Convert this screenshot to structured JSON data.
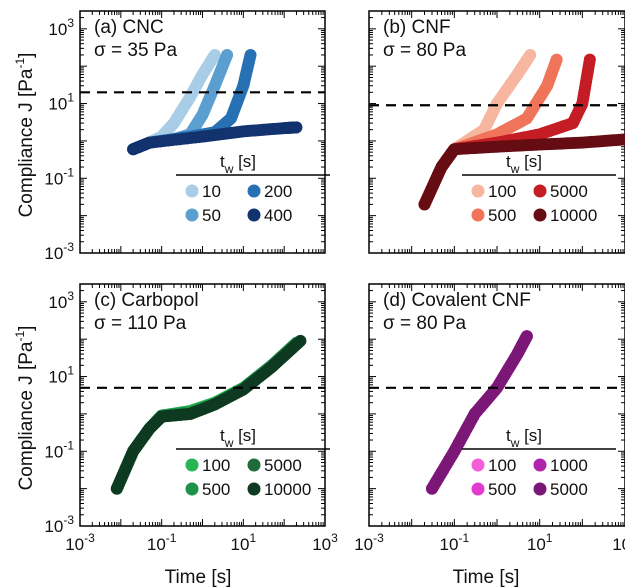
{
  "figure": {
    "ylabel": "Compliance J [Pa",
    "ylabel_sup": "-1",
    "ylabel_tail": "]",
    "xlabel": "Time [s]",
    "legend_var": "t",
    "legend_sub": "w",
    "legend_unit": " [s]"
  },
  "chart_data": [
    {
      "type": "scatter",
      "label": "(a) CNC",
      "stress": "σ = 35 Pa",
      "x_scale": "log",
      "y_scale": "log",
      "xlim": [
        0.001,
        1000
      ],
      "ylim": [
        0.001,
        3000
      ],
      "reference_line_y": 20,
      "legend": [
        "10",
        "200",
        "50",
        "400"
      ],
      "series": [
        {
          "name": "10",
          "color": "#a9cde6",
          "values": [
            [
              0.02,
              0.6
            ],
            [
              0.05,
              0.9
            ],
            [
              0.1,
              1.3
            ],
            [
              0.2,
              3
            ],
            [
              0.5,
              15
            ],
            [
              1,
              60
            ],
            [
              2,
              200
            ]
          ]
        },
        {
          "name": "50",
          "color": "#5b9fd0",
          "values": [
            [
              0.02,
              0.6
            ],
            [
              0.05,
              0.9
            ],
            [
              0.2,
              1.1
            ],
            [
              0.5,
              1.5
            ],
            [
              1,
              5
            ],
            [
              2,
              30
            ],
            [
              4,
              200
            ]
          ]
        },
        {
          "name": "200",
          "color": "#2870b4",
          "values": [
            [
              0.02,
              0.6
            ],
            [
              0.05,
              0.9
            ],
            [
              0.5,
              1.3
            ],
            [
              2,
              1.7
            ],
            [
              5,
              4
            ],
            [
              10,
              30
            ],
            [
              15,
              200
            ]
          ]
        },
        {
          "name": "400",
          "color": "#12336e",
          "values": [
            [
              0.02,
              0.6
            ],
            [
              0.05,
              0.9
            ],
            [
              1,
              1.3
            ],
            [
              10,
              1.8
            ],
            [
              100,
              2.2
            ],
            [
              200,
              2.3
            ]
          ]
        }
      ]
    },
    {
      "type": "scatter",
      "label": "(b) CNF",
      "stress": "σ = 80 Pa",
      "x_scale": "log",
      "y_scale": "log",
      "xlim": [
        0.001,
        1000
      ],
      "ylim": [
        0.001,
        3000
      ],
      "reference_line_y": 9,
      "legend": [
        "100",
        "5000",
        "500",
        "10000"
      ],
      "series": [
        {
          "name": "100",
          "color": "#f6b6a0",
          "values": [
            [
              0.02,
              0.02
            ],
            [
              0.05,
              0.2
            ],
            [
              0.1,
              0.6
            ],
            [
              0.5,
              2
            ],
            [
              1,
              10
            ],
            [
              3,
              60
            ],
            [
              6,
              200
            ]
          ]
        },
        {
          "name": "500",
          "color": "#ef7459",
          "values": [
            [
              0.02,
              0.02
            ],
            [
              0.05,
              0.2
            ],
            [
              0.1,
              0.6
            ],
            [
              1,
              1.5
            ],
            [
              5,
              4
            ],
            [
              15,
              30
            ],
            [
              25,
              150
            ]
          ]
        },
        {
          "name": "5000",
          "color": "#c51d25",
          "values": [
            [
              0.02,
              0.02
            ],
            [
              0.05,
              0.2
            ],
            [
              0.1,
              0.6
            ],
            [
              1,
              0.9
            ],
            [
              10,
              1.5
            ],
            [
              60,
              3
            ],
            [
              100,
              10
            ],
            [
              150,
              150
            ]
          ]
        },
        {
          "name": "10000",
          "color": "#650d13",
          "values": [
            [
              0.02,
              0.02
            ],
            [
              0.05,
              0.2
            ],
            [
              0.1,
              0.6
            ],
            [
              1,
              0.7
            ],
            [
              10,
              0.8
            ],
            [
              100,
              0.9
            ],
            [
              1000,
              1.1
            ]
          ]
        }
      ]
    },
    {
      "type": "scatter",
      "label": "(c) Carbopol",
      "stress": "σ = 110 Pa",
      "x_scale": "log",
      "y_scale": "log",
      "xlim": [
        0.001,
        1000
      ],
      "ylim": [
        0.001,
        3000
      ],
      "reference_line_y": 5,
      "legend": [
        "100",
        "5000",
        "500",
        "10000"
      ],
      "series": [
        {
          "name": "100",
          "color": "#2ab554",
          "values": [
            [
              0.008,
              0.01
            ],
            [
              0.02,
              0.1
            ],
            [
              0.05,
              0.4
            ],
            [
              0.1,
              0.9
            ],
            [
              0.5,
              1.2
            ],
            [
              2,
              2
            ],
            [
              10,
              5
            ],
            [
              50,
              20
            ],
            [
              200,
              80
            ]
          ]
        },
        {
          "name": "500",
          "color": "#1d9349",
          "values": [
            [
              0.008,
              0.01
            ],
            [
              0.02,
              0.1
            ],
            [
              0.05,
              0.4
            ],
            [
              0.1,
              0.9
            ],
            [
              0.5,
              1.1
            ],
            [
              2,
              1.9
            ],
            [
              10,
              4.8
            ],
            [
              50,
              20
            ],
            [
              200,
              80
            ]
          ]
        },
        {
          "name": "5000",
          "color": "#1f6b3b",
          "values": [
            [
              0.008,
              0.01
            ],
            [
              0.02,
              0.1
            ],
            [
              0.05,
              0.4
            ],
            [
              0.1,
              0.85
            ],
            [
              0.5,
              1.0
            ],
            [
              2,
              1.8
            ],
            [
              10,
              4.6
            ],
            [
              50,
              19
            ],
            [
              200,
              75
            ]
          ]
        },
        {
          "name": "10000",
          "color": "#0d3a20",
          "values": [
            [
              0.008,
              0.01
            ],
            [
              0.02,
              0.1
            ],
            [
              0.05,
              0.4
            ],
            [
              0.1,
              0.85
            ],
            [
              0.5,
              1.0
            ],
            [
              2,
              1.8
            ],
            [
              10,
              4.5
            ],
            [
              50,
              18
            ],
            [
              250,
              90
            ]
          ]
        }
      ]
    },
    {
      "type": "scatter",
      "label": "(d) Covalent CNF",
      "stress": "σ = 80 Pa",
      "x_scale": "log",
      "y_scale": "log",
      "xlim": [
        0.001,
        1000
      ],
      "ylim": [
        0.001,
        3000
      ],
      "reference_line_y": 5,
      "legend": [
        "100",
        "1000",
        "500",
        "5000"
      ],
      "series": [
        {
          "name": "100",
          "color": "#f25fd8",
          "values": [
            [
              0.03,
              0.01
            ],
            [
              0.1,
              0.1
            ],
            [
              0.3,
              1
            ],
            [
              1,
              5
            ],
            [
              3,
              40
            ],
            [
              5,
              120
            ]
          ]
        },
        {
          "name": "500",
          "color": "#e23bd0",
          "values": [
            [
              0.03,
              0.01
            ],
            [
              0.1,
              0.1
            ],
            [
              0.3,
              1
            ],
            [
              1,
              5
            ],
            [
              3,
              40
            ],
            [
              5,
              120
            ]
          ]
        },
        {
          "name": "1000",
          "color": "#b024ac",
          "values": [
            [
              0.03,
              0.01
            ],
            [
              0.1,
              0.1
            ],
            [
              0.3,
              1
            ],
            [
              1,
              5
            ],
            [
              3,
              40
            ],
            [
              5,
              120
            ]
          ]
        },
        {
          "name": "5000",
          "color": "#7b1877",
          "values": [
            [
              0.03,
              0.01
            ],
            [
              0.1,
              0.1
            ],
            [
              0.3,
              1
            ],
            [
              1,
              5
            ],
            [
              3,
              40
            ],
            [
              5,
              120
            ]
          ]
        }
      ]
    }
  ],
  "ticks": {
    "x": [
      {
        "mant": "10",
        "exp": "-3"
      },
      {
        "mant": "10",
        "exp": "-1"
      },
      {
        "mant": "10",
        "exp": "1"
      },
      {
        "mant": "10",
        "exp": "3"
      }
    ],
    "y": [
      {
        "mant": "10",
        "exp": "3"
      },
      {
        "mant": "10",
        "exp": "1"
      },
      {
        "mant": "10",
        "exp": "-1"
      },
      {
        "mant": "10",
        "exp": "-3"
      }
    ]
  }
}
